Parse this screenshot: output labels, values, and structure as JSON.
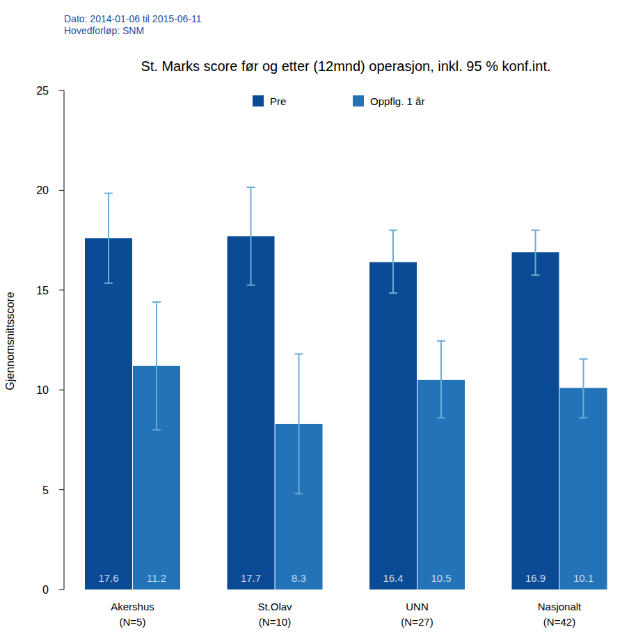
{
  "chart_data": {
    "type": "bar",
    "title": "St. Marks score før og etter (12mnd) operasjon, inkl. 95 % konf.int.",
    "annotations": [
      "Dato: 2014-01-06 til 2015-06-11",
      "Hovedforløp: SNM"
    ],
    "y_label": "Gjennomsnittsscore",
    "categories": [
      "Akershus\n(N=5)",
      "St.Olav\n(N=10)",
      "UNN\n(N=27)",
      "Nasjonalt\n(N=42)"
    ],
    "series": [
      {
        "name": "Pre",
        "color": "#0b4b96",
        "values": [
          17.6,
          17.7,
          16.4,
          16.9
        ],
        "ci_low": [
          15.35,
          15.25,
          14.85,
          15.75
        ],
        "ci_high": [
          19.85,
          20.15,
          18.0,
          18.0
        ]
      },
      {
        "name": "Oppflg. 1 år",
        "color": "#2473b8",
        "values": [
          11.2,
          8.3,
          10.5,
          10.1
        ],
        "ci_low": [
          8.0,
          4.8,
          8.6,
          8.6
        ],
        "ci_high": [
          14.4,
          11.8,
          12.45,
          11.55
        ]
      }
    ],
    "ylim": [
      0,
      25
    ],
    "yticks": [
      0,
      5,
      10,
      15,
      20,
      25
    ],
    "grid": false,
    "legend": "top",
    "data_labels": true
  }
}
